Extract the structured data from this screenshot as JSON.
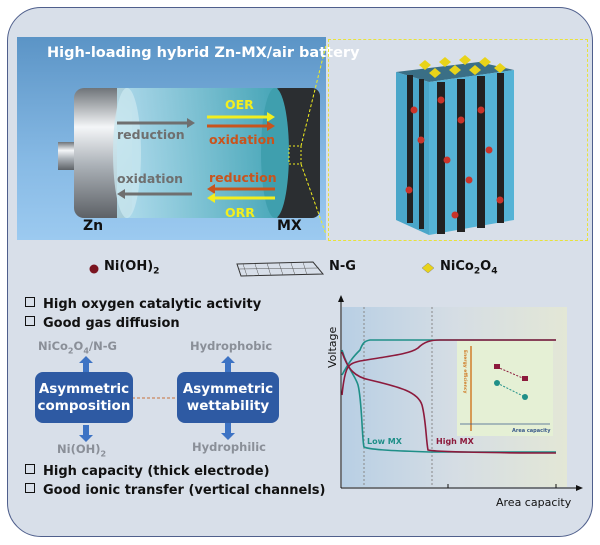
{
  "scene": {
    "title": "High-loading hybrid Zn-MX/air battery",
    "arrows": {
      "reduction_top": "reduction",
      "oer": "OER",
      "oxidation_top": "oxidation",
      "oxidation_bottom": "oxidation",
      "reduction_bottom": "reduction",
      "orr": "ORR"
    },
    "zn_label": "Zn",
    "mx_label": "MX"
  },
  "legend": {
    "nioh2": "Ni(OH)",
    "nioh2_sub": "2",
    "ng": "N-G",
    "nico2o4_a": "NiCo",
    "nico2o4_sub1": "2",
    "nico2o4_b": "O",
    "nico2o4_sub2": "4"
  },
  "bullets_top": [
    "High oxygen catalytic activity",
    "Good gas diffusion"
  ],
  "bullets_bottom": [
    "High capacity (thick electrode)",
    "Good ionic transfer (vertical channels)"
  ],
  "concept": {
    "box_left": [
      "Asymmetric",
      "composition"
    ],
    "box_right": [
      "Asymmetric",
      "wettability"
    ],
    "left_top_a": "NiCo",
    "left_top_s1": "2",
    "left_top_b": "O",
    "left_top_s2": "4",
    "left_top_c": "/N-G",
    "left_bottom": "Ni(OH)",
    "left_bottom_sub": "2",
    "right_top": "Hydrophobic",
    "right_bottom": "Hydrophilic"
  },
  "chart_data": {
    "type": "line",
    "xlabel": "Area capacity",
    "ylabel": "Voltage",
    "series": [
      {
        "name": "Low MX",
        "color": "#1f8f88"
      },
      {
        "name": "High MX",
        "color": "#8c1a3c"
      }
    ],
    "inset": {
      "xlabel": "Area capacity",
      "ylabel": "Energy efficiency",
      "series_colors": [
        "#8c1a3c",
        "#1f8f88"
      ]
    }
  },
  "colors": {
    "accent_blue": "#2e5aa3",
    "oer_yellow": "#f2ee1e",
    "oxidation_orange": "#c9541d",
    "panel": "#d8dfe9"
  }
}
